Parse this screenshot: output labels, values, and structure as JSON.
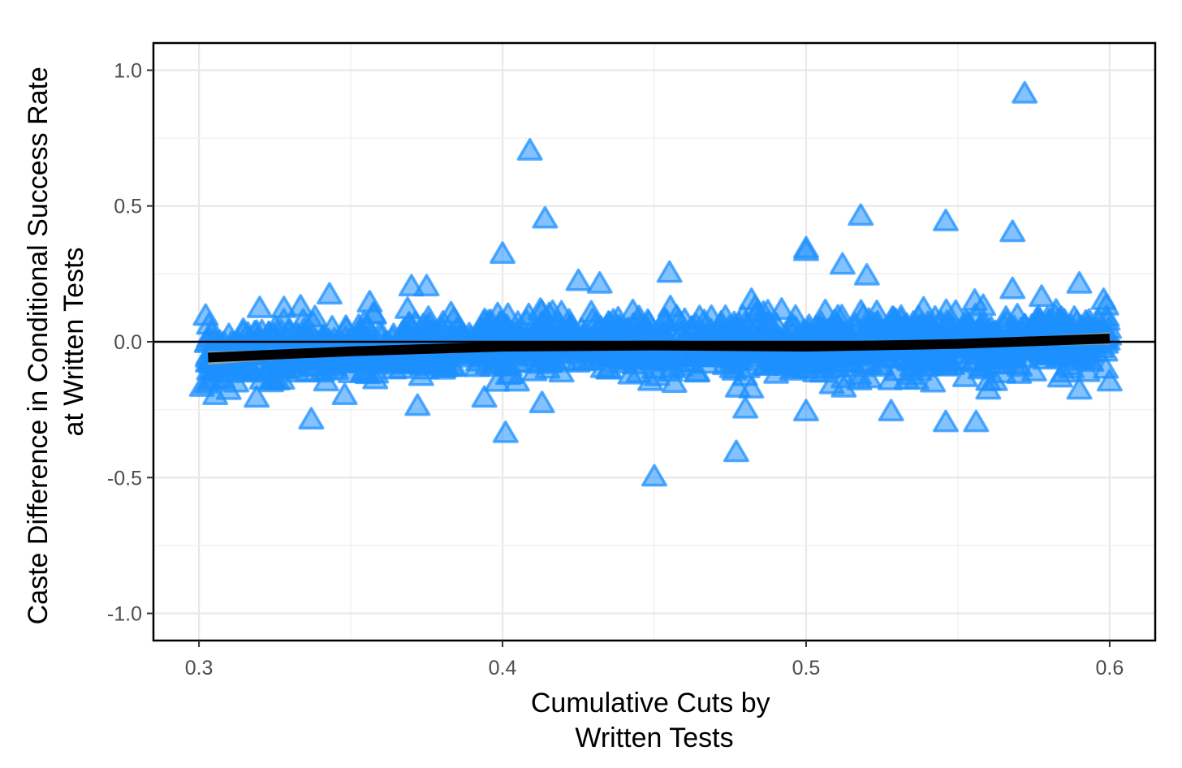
{
  "chart_data": {
    "type": "scatter",
    "xlabel": [
      "Cumulative Cuts by",
      "Written Tests"
    ],
    "ylabel": [
      "Caste Difference in Conditional Success Rate",
      "at Written Tests"
    ],
    "xlim": [
      0.285,
      0.615
    ],
    "ylim": [
      -1.1,
      1.1
    ],
    "x_ticks": [
      0.3,
      0.4,
      0.5,
      0.6
    ],
    "x_tick_labels": [
      "0.3",
      "0.4",
      "0.5",
      "0.6"
    ],
    "y_ticks": [
      1.0,
      0.5,
      0.0,
      -0.5,
      -1.0
    ],
    "y_tick_labels": [
      "1.0",
      "0.5",
      "0.0",
      "-0.5",
      "-1.0"
    ],
    "grid": true,
    "hline": 0.0,
    "marker": "triangle",
    "marker_color": "#1E90FF",
    "trend_color": "#000000",
    "ci_color": "#9aa89a",
    "trend": {
      "x": [
        0.303,
        0.35,
        0.4,
        0.45,
        0.5,
        0.55,
        0.6
      ],
      "y": [
        -0.058,
        -0.035,
        -0.018,
        -0.014,
        -0.018,
        -0.008,
        0.012
      ],
      "ci_upper": [
        -0.035,
        -0.027,
        -0.011,
        -0.008,
        -0.011,
        0.002,
        0.035
      ],
      "ci_lower": [
        -0.085,
        -0.044,
        -0.025,
        -0.02,
        -0.025,
        -0.018,
        -0.011
      ]
    },
    "outliers": {
      "x": [
        0.572,
        0.409,
        0.414,
        0.518,
        0.546,
        0.568,
        0.4,
        0.5,
        0.5,
        0.512,
        0.52,
        0.455,
        0.343,
        0.37,
        0.375,
        0.425,
        0.432,
        0.32,
        0.328,
        0.59,
        0.568,
        0.598,
        0.482,
        0.45,
        0.477,
        0.401,
        0.337,
        0.394,
        0.546,
        0.556,
        0.5,
        0.528,
        0.48,
        0.413,
        0.372,
        0.319,
        0.348,
        0.304,
        0.56,
        0.59,
        0.6,
        0.301
      ],
      "y": [
        0.91,
        0.7,
        0.45,
        0.46,
        0.44,
        0.4,
        0.32,
        0.34,
        0.33,
        0.28,
        0.24,
        0.25,
        0.17,
        0.2,
        0.2,
        0.22,
        0.21,
        0.12,
        0.12,
        0.21,
        0.19,
        0.15,
        0.15,
        -0.5,
        -0.41,
        -0.34,
        -0.29,
        -0.21,
        -0.3,
        -0.3,
        -0.26,
        -0.26,
        -0.25,
        -0.23,
        -0.24,
        -0.21,
        -0.2,
        0.03,
        -0.18,
        -0.18,
        -0.15,
        -0.17
      ]
    }
  }
}
